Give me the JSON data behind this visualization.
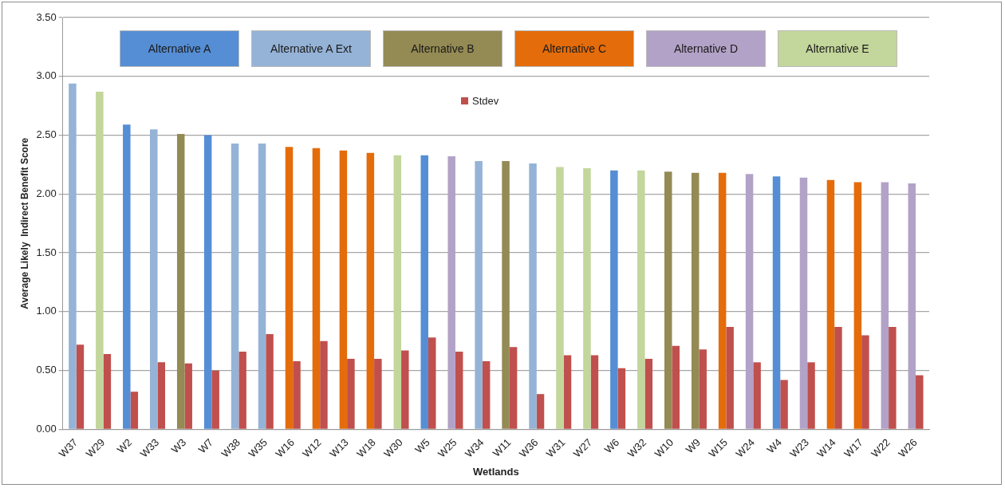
{
  "chart_data": {
    "type": "bar",
    "xlabel": "Wetlands",
    "ylabel": "Average Likely  Indirect Benefit Score",
    "categories": [
      "W37",
      "W29",
      "W2",
      "W33",
      "W3",
      "W7",
      "W38",
      "W35",
      "W16",
      "W12",
      "W13",
      "W18",
      "W30",
      "W5",
      "W25",
      "W34",
      "W11",
      "W36",
      "W31",
      "W27",
      "W6",
      "W32",
      "W10",
      "W9",
      "W15",
      "W24",
      "W4",
      "W23",
      "W14",
      "W17",
      "W22",
      "W26"
    ],
    "series": [
      {
        "name": "Alternative A",
        "color": "#558ed5",
        "values": [
          null,
          null,
          2.59,
          null,
          null,
          2.5,
          null,
          null,
          null,
          null,
          null,
          null,
          null,
          2.33,
          null,
          null,
          null,
          null,
          null,
          null,
          2.2,
          null,
          null,
          null,
          null,
          null,
          2.15,
          null,
          null,
          null,
          null,
          null
        ]
      },
      {
        "name": "Alternative A Ext",
        "color": "#95b3d7",
        "values": [
          2.94,
          null,
          null,
          2.55,
          null,
          null,
          2.43,
          2.43,
          null,
          null,
          null,
          null,
          null,
          null,
          null,
          2.28,
          null,
          2.26,
          null,
          null,
          null,
          null,
          null,
          null,
          null,
          null,
          null,
          null,
          null,
          null,
          null,
          null
        ]
      },
      {
        "name": "Alternative B",
        "color": "#948a54",
        "values": [
          null,
          null,
          null,
          null,
          2.51,
          null,
          null,
          null,
          null,
          null,
          null,
          null,
          null,
          null,
          null,
          null,
          2.28,
          null,
          null,
          null,
          null,
          null,
          2.19,
          2.18,
          null,
          null,
          null,
          null,
          null,
          null,
          null,
          null
        ]
      },
      {
        "name": "Alternative C",
        "color": "#e46c0a",
        "values": [
          null,
          null,
          null,
          null,
          null,
          null,
          null,
          null,
          2.4,
          2.39,
          2.37,
          2.35,
          null,
          null,
          null,
          null,
          null,
          null,
          null,
          null,
          null,
          null,
          null,
          null,
          2.18,
          null,
          null,
          null,
          2.12,
          2.1,
          null,
          null
        ]
      },
      {
        "name": "Alternative D",
        "color": "#b3a2c7",
        "values": [
          null,
          null,
          null,
          null,
          null,
          null,
          null,
          null,
          null,
          null,
          null,
          null,
          null,
          null,
          2.32,
          null,
          null,
          null,
          null,
          null,
          null,
          null,
          null,
          null,
          null,
          2.17,
          null,
          2.14,
          null,
          null,
          2.1,
          2.09
        ]
      },
      {
        "name": "Alternative E",
        "color": "#c3d69b",
        "values": [
          null,
          2.87,
          null,
          null,
          null,
          null,
          null,
          null,
          null,
          null,
          null,
          null,
          2.33,
          null,
          null,
          null,
          null,
          null,
          2.23,
          2.22,
          null,
          2.2,
          null,
          null,
          null,
          null,
          null,
          null,
          null,
          null,
          null,
          null
        ]
      },
      {
        "name": "Stdev",
        "color": "#c0504d",
        "values": [
          0.72,
          0.64,
          0.32,
          0.57,
          0.56,
          0.5,
          0.66,
          0.81,
          0.58,
          0.75,
          0.6,
          0.6,
          0.67,
          0.78,
          0.66,
          0.58,
          0.7,
          0.3,
          0.63,
          0.63,
          0.52,
          0.6,
          0.71,
          0.68,
          0.87,
          0.57,
          0.42,
          0.57,
          0.87,
          0.8,
          0.87,
          0.46
        ]
      }
    ],
    "ylim": [
      0,
      3.5
    ],
    "yticks": [
      {
        "value": 0,
        "label": "0.00"
      },
      {
        "value": 0.5,
        "label": "0.50"
      },
      {
        "value": 1,
        "label": "1.00"
      },
      {
        "value": 1.5,
        "label": "1.50"
      },
      {
        "value": 2,
        "label": "2.00"
      },
      {
        "value": 2.5,
        "label": "2.50"
      },
      {
        "value": 3,
        "label": "3.00"
      },
      {
        "value": 3.5,
        "label": "3.50"
      }
    ],
    "grid": "y",
    "legend": "top"
  }
}
